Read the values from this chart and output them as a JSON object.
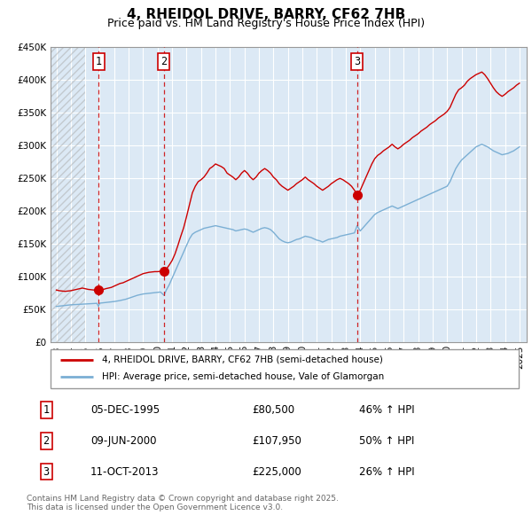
{
  "title": "4, RHEIDOL DRIVE, BARRY, CF62 7HB",
  "subtitle": "Price paid vs. HM Land Registry's House Price Index (HPI)",
  "legend_line1": "4, RHEIDOL DRIVE, BARRY, CF62 7HB (semi-detached house)",
  "legend_line2": "HPI: Average price, semi-detached house, Vale of Glamorgan",
  "transactions": [
    {
      "num": 1,
      "date": "05-DEC-1995",
      "price": "£80,500",
      "hpi_pct": "46% ↑ HPI",
      "year": 1995.92
    },
    {
      "num": 2,
      "date": "09-JUN-2000",
      "price": "£107,950",
      "hpi_pct": "50% ↑ HPI",
      "year": 2000.44
    },
    {
      "num": 3,
      "date": "11-OCT-2013",
      "price": "£225,000",
      "hpi_pct": "26% ↑ HPI",
      "year": 2013.78
    }
  ],
  "footer_line1": "Contains HM Land Registry data © Crown copyright and database right 2025.",
  "footer_line2": "This data is licensed under the Open Government Licence v3.0.",
  "ylim": [
    0,
    450000
  ],
  "xlim_start": 1992.6,
  "xlim_end": 2025.5,
  "background_color": "#dce9f5",
  "line_color_red": "#cc0000",
  "line_color_blue": "#7bafd4",
  "red_price_data": [
    [
      1993.0,
      80000
    ],
    [
      1993.2,
      79000
    ],
    [
      1993.4,
      78500
    ],
    [
      1993.6,
      78000
    ],
    [
      1993.8,
      78500
    ],
    [
      1994.0,
      79000
    ],
    [
      1994.2,
      80000
    ],
    [
      1994.4,
      81000
    ],
    [
      1994.6,
      82000
    ],
    [
      1994.8,
      83000
    ],
    [
      1995.0,
      82000
    ],
    [
      1995.2,
      81000
    ],
    [
      1995.4,
      80500
    ],
    [
      1995.6,
      80000
    ],
    [
      1995.8,
      80200
    ],
    [
      1995.92,
      80500
    ],
    [
      1996.0,
      80000
    ],
    [
      1996.2,
      80500
    ],
    [
      1996.4,
      82000
    ],
    [
      1996.6,
      83000
    ],
    [
      1996.8,
      84000
    ],
    [
      1997.0,
      86000
    ],
    [
      1997.2,
      88000
    ],
    [
      1997.4,
      90000
    ],
    [
      1997.6,
      91000
    ],
    [
      1997.8,
      93000
    ],
    [
      1998.0,
      95000
    ],
    [
      1998.2,
      97000
    ],
    [
      1998.4,
      99000
    ],
    [
      1998.6,
      101000
    ],
    [
      1998.8,
      103000
    ],
    [
      1999.0,
      105000
    ],
    [
      1999.2,
      106000
    ],
    [
      1999.4,
      107000
    ],
    [
      1999.6,
      107500
    ],
    [
      1999.8,
      108000
    ],
    [
      2000.0,
      108000
    ],
    [
      2000.2,
      108500
    ],
    [
      2000.44,
      107950
    ],
    [
      2000.6,
      112000
    ],
    [
      2000.8,
      118000
    ],
    [
      2001.0,
      125000
    ],
    [
      2001.2,
      135000
    ],
    [
      2001.4,
      148000
    ],
    [
      2001.6,
      162000
    ],
    [
      2001.8,
      175000
    ],
    [
      2002.0,
      192000
    ],
    [
      2002.2,
      210000
    ],
    [
      2002.4,
      228000
    ],
    [
      2002.6,
      238000
    ],
    [
      2002.8,
      245000
    ],
    [
      2003.0,
      248000
    ],
    [
      2003.2,
      252000
    ],
    [
      2003.4,
      258000
    ],
    [
      2003.6,
      265000
    ],
    [
      2003.8,
      268000
    ],
    [
      2004.0,
      272000
    ],
    [
      2004.2,
      270000
    ],
    [
      2004.4,
      268000
    ],
    [
      2004.6,
      265000
    ],
    [
      2004.8,
      258000
    ],
    [
      2005.0,
      255000
    ],
    [
      2005.2,
      252000
    ],
    [
      2005.4,
      248000
    ],
    [
      2005.6,
      252000
    ],
    [
      2005.8,
      258000
    ],
    [
      2006.0,
      262000
    ],
    [
      2006.2,
      258000
    ],
    [
      2006.4,
      252000
    ],
    [
      2006.6,
      248000
    ],
    [
      2006.8,
      252000
    ],
    [
      2007.0,
      258000
    ],
    [
      2007.2,
      262000
    ],
    [
      2007.4,
      265000
    ],
    [
      2007.6,
      262000
    ],
    [
      2007.8,
      258000
    ],
    [
      2008.0,
      252000
    ],
    [
      2008.2,
      248000
    ],
    [
      2008.4,
      242000
    ],
    [
      2008.6,
      238000
    ],
    [
      2008.8,
      235000
    ],
    [
      2009.0,
      232000
    ],
    [
      2009.2,
      235000
    ],
    [
      2009.4,
      238000
    ],
    [
      2009.6,
      242000
    ],
    [
      2009.8,
      245000
    ],
    [
      2010.0,
      248000
    ],
    [
      2010.2,
      252000
    ],
    [
      2010.4,
      248000
    ],
    [
      2010.6,
      245000
    ],
    [
      2010.8,
      242000
    ],
    [
      2011.0,
      238000
    ],
    [
      2011.2,
      235000
    ],
    [
      2011.4,
      232000
    ],
    [
      2011.6,
      235000
    ],
    [
      2011.8,
      238000
    ],
    [
      2012.0,
      242000
    ],
    [
      2012.2,
      245000
    ],
    [
      2012.4,
      248000
    ],
    [
      2012.6,
      250000
    ],
    [
      2012.8,
      248000
    ],
    [
      2013.0,
      245000
    ],
    [
      2013.2,
      242000
    ],
    [
      2013.4,
      238000
    ],
    [
      2013.6,
      232000
    ],
    [
      2013.78,
      225000
    ],
    [
      2014.0,
      232000
    ],
    [
      2014.2,
      242000
    ],
    [
      2014.4,
      252000
    ],
    [
      2014.6,
      262000
    ],
    [
      2014.8,
      272000
    ],
    [
      2015.0,
      280000
    ],
    [
      2015.2,
      285000
    ],
    [
      2015.4,
      288000
    ],
    [
      2015.6,
      292000
    ],
    [
      2015.8,
      295000
    ],
    [
      2016.0,
      298000
    ],
    [
      2016.2,
      302000
    ],
    [
      2016.4,
      298000
    ],
    [
      2016.6,
      295000
    ],
    [
      2016.8,
      298000
    ],
    [
      2017.0,
      302000
    ],
    [
      2017.2,
      305000
    ],
    [
      2017.4,
      308000
    ],
    [
      2017.6,
      312000
    ],
    [
      2017.8,
      315000
    ],
    [
      2018.0,
      318000
    ],
    [
      2018.2,
      322000
    ],
    [
      2018.4,
      325000
    ],
    [
      2018.6,
      328000
    ],
    [
      2018.8,
      332000
    ],
    [
      2019.0,
      335000
    ],
    [
      2019.2,
      338000
    ],
    [
      2019.4,
      342000
    ],
    [
      2019.6,
      345000
    ],
    [
      2019.8,
      348000
    ],
    [
      2020.0,
      352000
    ],
    [
      2020.2,
      358000
    ],
    [
      2020.4,
      368000
    ],
    [
      2020.6,
      378000
    ],
    [
      2020.8,
      385000
    ],
    [
      2021.0,
      388000
    ],
    [
      2021.2,
      392000
    ],
    [
      2021.4,
      398000
    ],
    [
      2021.6,
      402000
    ],
    [
      2021.8,
      405000
    ],
    [
      2022.0,
      408000
    ],
    [
      2022.2,
      410000
    ],
    [
      2022.4,
      412000
    ],
    [
      2022.6,
      408000
    ],
    [
      2022.8,
      402000
    ],
    [
      2023.0,
      395000
    ],
    [
      2023.2,
      388000
    ],
    [
      2023.4,
      382000
    ],
    [
      2023.6,
      378000
    ],
    [
      2023.8,
      375000
    ],
    [
      2024.0,
      378000
    ],
    [
      2024.2,
      382000
    ],
    [
      2024.4,
      385000
    ],
    [
      2024.6,
      388000
    ],
    [
      2024.8,
      392000
    ],
    [
      2025.0,
      395000
    ]
  ],
  "blue_hpi_data": [
    [
      1993.0,
      55000
    ],
    [
      1993.2,
      55500
    ],
    [
      1993.4,
      56000
    ],
    [
      1993.6,
      56500
    ],
    [
      1993.8,
      57000
    ],
    [
      1994.0,
      57500
    ],
    [
      1994.2,
      57800
    ],
    [
      1994.4,
      58000
    ],
    [
      1994.6,
      58200
    ],
    [
      1994.8,
      58500
    ],
    [
      1995.0,
      58800
    ],
    [
      1995.2,
      59000
    ],
    [
      1995.4,
      59200
    ],
    [
      1995.6,
      59500
    ],
    [
      1995.8,
      59800
    ],
    [
      1995.92,
      55000
    ],
    [
      1996.0,
      60000
    ],
    [
      1996.2,
      60500
    ],
    [
      1996.4,
      61000
    ],
    [
      1996.6,
      61500
    ],
    [
      1996.8,
      62000
    ],
    [
      1997.0,
      62500
    ],
    [
      1997.2,
      63200
    ],
    [
      1997.4,
      64000
    ],
    [
      1997.6,
      65000
    ],
    [
      1997.8,
      66000
    ],
    [
      1998.0,
      67500
    ],
    [
      1998.2,
      69000
    ],
    [
      1998.4,
      70500
    ],
    [
      1998.6,
      72000
    ],
    [
      1998.8,
      73000
    ],
    [
      1999.0,
      74000
    ],
    [
      1999.2,
      74500
    ],
    [
      1999.4,
      75000
    ],
    [
      1999.6,
      75500
    ],
    [
      1999.8,
      76000
    ],
    [
      2000.0,
      76500
    ],
    [
      2000.2,
      77000
    ],
    [
      2000.44,
      72000
    ],
    [
      2000.6,
      80000
    ],
    [
      2000.8,
      88000
    ],
    [
      2001.0,
      98000
    ],
    [
      2001.2,
      108000
    ],
    [
      2001.4,
      118000
    ],
    [
      2001.6,
      128000
    ],
    [
      2001.8,
      138000
    ],
    [
      2002.0,
      148000
    ],
    [
      2002.2,
      158000
    ],
    [
      2002.4,
      165000
    ],
    [
      2002.6,
      168000
    ],
    [
      2002.8,
      170000
    ],
    [
      2003.0,
      172000
    ],
    [
      2003.2,
      174000
    ],
    [
      2003.4,
      175000
    ],
    [
      2003.6,
      176000
    ],
    [
      2003.8,
      177000
    ],
    [
      2004.0,
      178000
    ],
    [
      2004.2,
      177000
    ],
    [
      2004.4,
      176000
    ],
    [
      2004.6,
      175000
    ],
    [
      2004.8,
      174000
    ],
    [
      2005.0,
      173000
    ],
    [
      2005.2,
      172000
    ],
    [
      2005.4,
      170000
    ],
    [
      2005.6,
      171000
    ],
    [
      2005.8,
      172000
    ],
    [
      2006.0,
      173000
    ],
    [
      2006.2,
      172000
    ],
    [
      2006.4,
      170000
    ],
    [
      2006.6,
      168000
    ],
    [
      2006.8,
      170000
    ],
    [
      2007.0,
      172000
    ],
    [
      2007.2,
      174000
    ],
    [
      2007.4,
      175000
    ],
    [
      2007.6,
      174000
    ],
    [
      2007.8,
      172000
    ],
    [
      2008.0,
      168000
    ],
    [
      2008.2,
      163000
    ],
    [
      2008.4,
      158000
    ],
    [
      2008.6,
      155000
    ],
    [
      2008.8,
      153000
    ],
    [
      2009.0,
      152000
    ],
    [
      2009.2,
      153000
    ],
    [
      2009.4,
      155000
    ],
    [
      2009.6,
      157000
    ],
    [
      2009.8,
      158000
    ],
    [
      2010.0,
      160000
    ],
    [
      2010.2,
      162000
    ],
    [
      2010.4,
      161000
    ],
    [
      2010.6,
      160000
    ],
    [
      2010.8,
      158000
    ],
    [
      2011.0,
      156000
    ],
    [
      2011.2,
      155000
    ],
    [
      2011.4,
      153000
    ],
    [
      2011.6,
      155000
    ],
    [
      2011.8,
      157000
    ],
    [
      2012.0,
      158000
    ],
    [
      2012.2,
      159000
    ],
    [
      2012.4,
      160000
    ],
    [
      2012.6,
      162000
    ],
    [
      2012.8,
      163000
    ],
    [
      2013.0,
      164000
    ],
    [
      2013.2,
      165000
    ],
    [
      2013.4,
      166000
    ],
    [
      2013.6,
      167000
    ],
    [
      2013.78,
      178000
    ],
    [
      2014.0,
      170000
    ],
    [
      2014.2,
      175000
    ],
    [
      2014.4,
      180000
    ],
    [
      2014.6,
      185000
    ],
    [
      2014.8,
      190000
    ],
    [
      2015.0,
      195000
    ],
    [
      2015.2,
      198000
    ],
    [
      2015.4,
      200000
    ],
    [
      2015.6,
      202000
    ],
    [
      2015.8,
      204000
    ],
    [
      2016.0,
      206000
    ],
    [
      2016.2,
      208000
    ],
    [
      2016.4,
      206000
    ],
    [
      2016.6,
      204000
    ],
    [
      2016.8,
      206000
    ],
    [
      2017.0,
      208000
    ],
    [
      2017.2,
      210000
    ],
    [
      2017.4,
      212000
    ],
    [
      2017.6,
      214000
    ],
    [
      2017.8,
      216000
    ],
    [
      2018.0,
      218000
    ],
    [
      2018.2,
      220000
    ],
    [
      2018.4,
      222000
    ],
    [
      2018.6,
      224000
    ],
    [
      2018.8,
      226000
    ],
    [
      2019.0,
      228000
    ],
    [
      2019.2,
      230000
    ],
    [
      2019.4,
      232000
    ],
    [
      2019.6,
      234000
    ],
    [
      2019.8,
      236000
    ],
    [
      2020.0,
      238000
    ],
    [
      2020.2,
      245000
    ],
    [
      2020.4,
      255000
    ],
    [
      2020.6,
      265000
    ],
    [
      2020.8,
      272000
    ],
    [
      2021.0,
      278000
    ],
    [
      2021.2,
      282000
    ],
    [
      2021.4,
      286000
    ],
    [
      2021.6,
      290000
    ],
    [
      2021.8,
      294000
    ],
    [
      2022.0,
      298000
    ],
    [
      2022.2,
      300000
    ],
    [
      2022.4,
      302000
    ],
    [
      2022.6,
      300000
    ],
    [
      2022.8,
      298000
    ],
    [
      2023.0,
      295000
    ],
    [
      2023.2,
      292000
    ],
    [
      2023.4,
      290000
    ],
    [
      2023.6,
      288000
    ],
    [
      2023.8,
      286000
    ],
    [
      2024.0,
      287000
    ],
    [
      2024.2,
      288000
    ],
    [
      2024.4,
      290000
    ],
    [
      2024.6,
      292000
    ],
    [
      2024.8,
      295000
    ],
    [
      2025.0,
      298000
    ]
  ]
}
